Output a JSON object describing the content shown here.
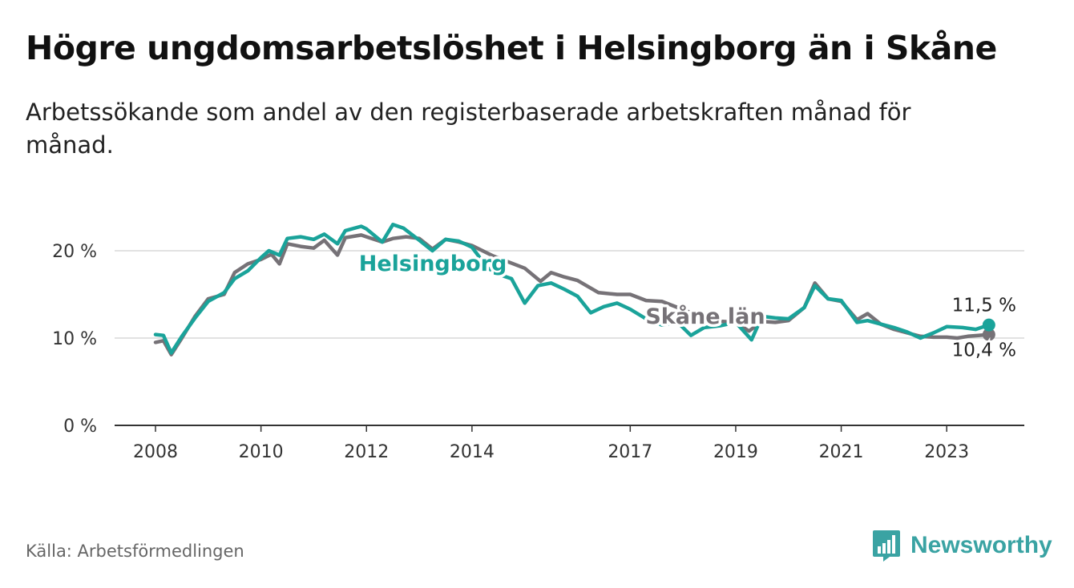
{
  "title": "Högre ungdomsarbetslöshet i Helsingborg än i Skåne",
  "subtitle": "Arbetssökande som andel av den registerbaserade arbetskraften månad för månad.",
  "source": "Källa: Arbetsförmedlingen",
  "brand": "Newsworthy",
  "colors": {
    "helsingborg": "#1aa39a",
    "skane": "#767277",
    "grid": "#d9d9d9",
    "axis": "#333333",
    "brand": "#3aa3a3"
  },
  "chart_data": {
    "type": "line",
    "title": "Högre ungdomsarbetslöshet i Helsingborg än i Skåne",
    "xlabel": "",
    "ylabel": "",
    "x_range": [
      2008.0,
      2023.9
    ],
    "ylim": [
      0,
      20
    ],
    "y_ticks": [
      0,
      10,
      20
    ],
    "y_tick_labels": [
      "0 %",
      "10 %",
      "20 %"
    ],
    "x_ticks": [
      2008,
      2010,
      2012,
      2014,
      2017,
      2019,
      2021,
      2023
    ],
    "x_tick_labels": [
      "2008",
      "2010",
      "2012",
      "2014",
      "2017",
      "2019",
      "2021",
      "2023"
    ],
    "grid": true,
    "series": [
      {
        "name": "Skåne län",
        "color": "#767277",
        "end_label": "10,4 %",
        "points": [
          [
            2008.0,
            9.5
          ],
          [
            2008.15,
            9.7
          ],
          [
            2008.3,
            8.1
          ],
          [
            2008.5,
            10.0
          ],
          [
            2008.75,
            12.5
          ],
          [
            2009.0,
            14.5
          ],
          [
            2009.3,
            15.0
          ],
          [
            2009.5,
            17.5
          ],
          [
            2009.75,
            18.5
          ],
          [
            2010.0,
            19.0
          ],
          [
            2010.2,
            19.6
          ],
          [
            2010.35,
            18.5
          ],
          [
            2010.5,
            20.8
          ],
          [
            2010.75,
            20.5
          ],
          [
            2011.0,
            20.3
          ],
          [
            2011.2,
            21.2
          ],
          [
            2011.45,
            19.5
          ],
          [
            2011.6,
            21.5
          ],
          [
            2011.9,
            21.8
          ],
          [
            2012.0,
            21.6
          ],
          [
            2012.3,
            21.0
          ],
          [
            2012.5,
            21.4
          ],
          [
            2012.75,
            21.6
          ],
          [
            2013.0,
            21.4
          ],
          [
            2013.25,
            20.2
          ],
          [
            2013.5,
            21.3
          ],
          [
            2013.75,
            21.0
          ],
          [
            2014.0,
            20.6
          ],
          [
            2014.4,
            19.4
          ],
          [
            2014.7,
            18.7
          ],
          [
            2015.0,
            18.0
          ],
          [
            2015.3,
            16.5
          ],
          [
            2015.5,
            17.5
          ],
          [
            2015.75,
            17.0
          ],
          [
            2016.0,
            16.6
          ],
          [
            2016.4,
            15.2
          ],
          [
            2016.75,
            15.0
          ],
          [
            2017.0,
            15.0
          ],
          [
            2017.3,
            14.3
          ],
          [
            2017.6,
            14.2
          ],
          [
            2017.9,
            13.5
          ],
          [
            2018.2,
            12.8
          ],
          [
            2018.5,
            12.2
          ],
          [
            2018.75,
            11.9
          ],
          [
            2019.0,
            11.8
          ],
          [
            2019.25,
            10.8
          ],
          [
            2019.5,
            11.9
          ],
          [
            2019.75,
            11.8
          ],
          [
            2020.0,
            12.0
          ],
          [
            2020.3,
            13.5
          ],
          [
            2020.5,
            16.3
          ],
          [
            2020.75,
            14.5
          ],
          [
            2021.0,
            14.2
          ],
          [
            2021.3,
            12.1
          ],
          [
            2021.5,
            12.8
          ],
          [
            2021.75,
            11.6
          ],
          [
            2022.0,
            11.0
          ],
          [
            2022.25,
            10.6
          ],
          [
            2022.5,
            10.2
          ],
          [
            2022.75,
            10.1
          ],
          [
            2023.0,
            10.1
          ],
          [
            2023.2,
            10.0
          ],
          [
            2023.4,
            10.2
          ],
          [
            2023.6,
            10.3
          ],
          [
            2023.8,
            10.4
          ]
        ]
      },
      {
        "name": "Helsingborg",
        "color": "#1aa39a",
        "end_label": "11,5 %",
        "points": [
          [
            2008.0,
            10.4
          ],
          [
            2008.15,
            10.3
          ],
          [
            2008.3,
            8.3
          ],
          [
            2008.5,
            10.2
          ],
          [
            2008.75,
            12.3
          ],
          [
            2009.0,
            14.2
          ],
          [
            2009.3,
            15.2
          ],
          [
            2009.5,
            16.8
          ],
          [
            2009.75,
            17.7
          ],
          [
            2010.0,
            19.2
          ],
          [
            2010.15,
            20.0
          ],
          [
            2010.35,
            19.5
          ],
          [
            2010.5,
            21.4
          ],
          [
            2010.75,
            21.6
          ],
          [
            2011.0,
            21.3
          ],
          [
            2011.2,
            21.9
          ],
          [
            2011.45,
            20.8
          ],
          [
            2011.6,
            22.3
          ],
          [
            2011.9,
            22.8
          ],
          [
            2012.0,
            22.5
          ],
          [
            2012.3,
            21.0
          ],
          [
            2012.5,
            23.0
          ],
          [
            2012.7,
            22.6
          ],
          [
            2013.0,
            21.2
          ],
          [
            2013.25,
            20.0
          ],
          [
            2013.5,
            21.3
          ],
          [
            2013.75,
            21.1
          ],
          [
            2014.0,
            20.4
          ],
          [
            2014.3,
            18.0
          ],
          [
            2014.6,
            17.1
          ],
          [
            2014.75,
            16.8
          ],
          [
            2015.0,
            14.0
          ],
          [
            2015.25,
            16.0
          ],
          [
            2015.5,
            16.3
          ],
          [
            2015.75,
            15.6
          ],
          [
            2016.0,
            14.8
          ],
          [
            2016.25,
            12.9
          ],
          [
            2016.5,
            13.6
          ],
          [
            2016.75,
            14.0
          ],
          [
            2017.0,
            13.3
          ],
          [
            2017.3,
            12.2
          ],
          [
            2017.6,
            11.5
          ],
          [
            2017.9,
            11.8
          ],
          [
            2018.15,
            10.3
          ],
          [
            2018.4,
            11.2
          ],
          [
            2018.7,
            11.4
          ],
          [
            2019.0,
            11.8
          ],
          [
            2019.3,
            9.8
          ],
          [
            2019.5,
            12.5
          ],
          [
            2019.75,
            12.3
          ],
          [
            2020.0,
            12.2
          ],
          [
            2020.3,
            13.5
          ],
          [
            2020.5,
            16.0
          ],
          [
            2020.75,
            14.5
          ],
          [
            2021.0,
            14.3
          ],
          [
            2021.3,
            11.8
          ],
          [
            2021.5,
            12.0
          ],
          [
            2021.75,
            11.6
          ],
          [
            2022.0,
            11.2
          ],
          [
            2022.25,
            10.7
          ],
          [
            2022.5,
            10.0
          ],
          [
            2022.75,
            10.6
          ],
          [
            2023.0,
            11.3
          ],
          [
            2023.3,
            11.2
          ],
          [
            2023.55,
            11.0
          ],
          [
            2023.8,
            11.5
          ]
        ]
      }
    ]
  }
}
